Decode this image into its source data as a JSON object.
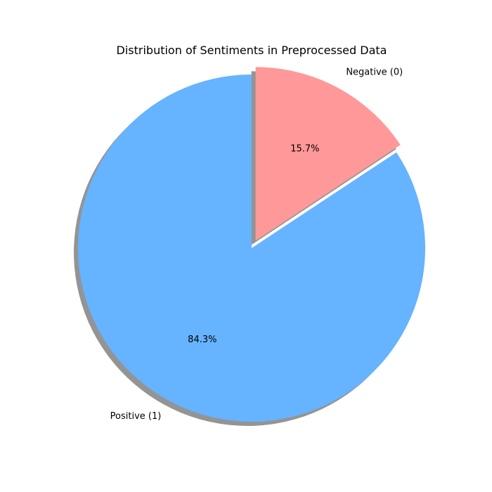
{
  "chart_data": {
    "type": "pie",
    "title": "Distribution of Sentiments in Preprocessed Data",
    "slices": [
      {
        "label": "Negative (0)",
        "value": 15.7,
        "pct_label": "15.7%",
        "color": "#ff9999",
        "exploded": true
      },
      {
        "label": "Positive (1)",
        "value": 84.3,
        "pct_label": "84.3%",
        "color": "#66b3ff",
        "exploded": false
      }
    ],
    "start_angle_deg": 90,
    "direction": "clockwise",
    "shadow": true
  }
}
